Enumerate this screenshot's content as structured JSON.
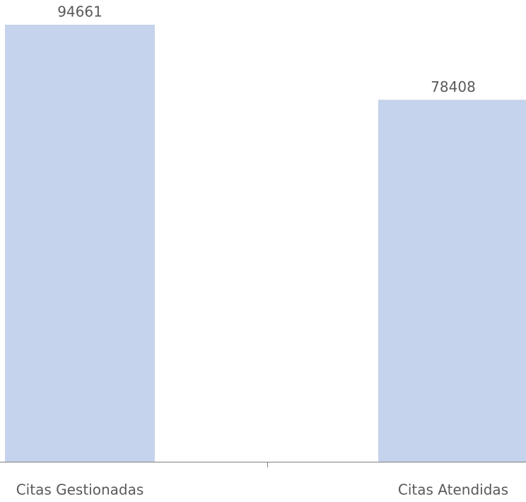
{
  "chart_data": {
    "type": "bar",
    "categories": [
      "Citas Gestionadas",
      "Citas Atendidas"
    ],
    "values": [
      94661,
      78408
    ],
    "color": "#c5d3ec"
  }
}
